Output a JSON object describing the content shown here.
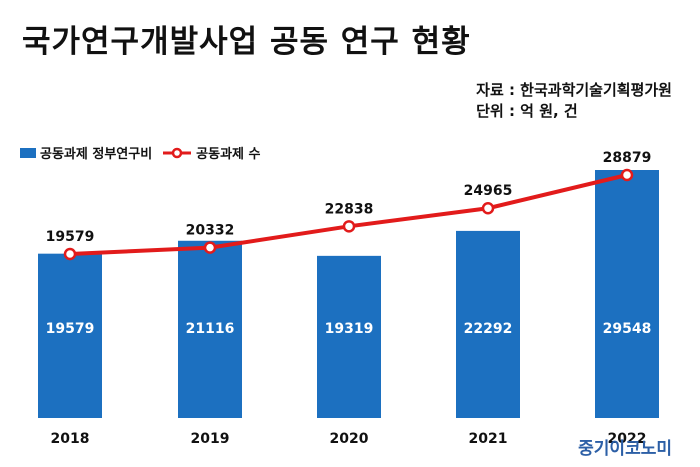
{
  "title": "국가연구개발사업 공동 연구 현황",
  "source": {
    "line1": "자료 : 한국과학기술기획평가원",
    "line2": "단위 : 억 원, 건"
  },
  "colors": {
    "bar": "#1c70c0",
    "line": "#e21b1b",
    "marker_fill": "#ffffff"
  },
  "logo": "중기이코노미",
  "chart_data": {
    "type": "bar",
    "categories": [
      "2018",
      "2019",
      "2020",
      "2021",
      "2022"
    ],
    "series": [
      {
        "name": "공동과제 정부연구비",
        "type": "bar",
        "values": [
          19579,
          21116,
          19319,
          22292,
          29548
        ],
        "data_labels": [
          "19579",
          "21116",
          "19319",
          "22292",
          "29548"
        ]
      },
      {
        "name": "공동과제 수",
        "type": "line",
        "values": [
          19579,
          20332,
          22838,
          24965,
          28879
        ],
        "data_labels": [
          "19579",
          "20332",
          "22838",
          "24965",
          "28879"
        ]
      }
    ],
    "legend_position": "top-left",
    "grid": false
  }
}
